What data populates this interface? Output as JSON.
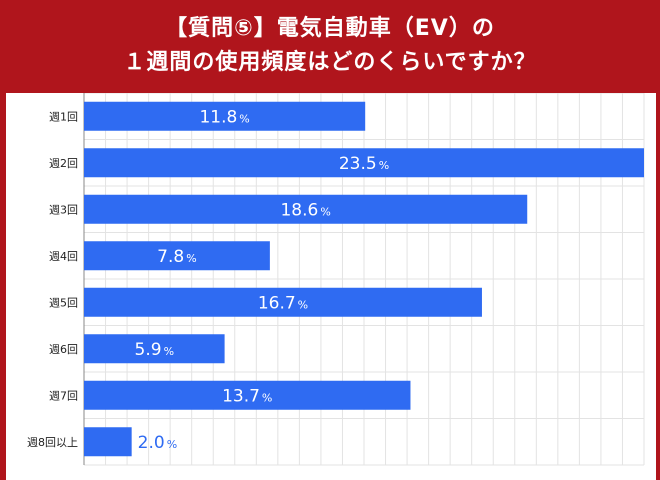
{
  "title": {
    "line1": "【質問⑤】電気自動車（EV）の",
    "line2": "１週間の使用頻度はどのくらいですか？"
  },
  "colors": {
    "frame": "#b0151c",
    "bar": "#2f6bf2",
    "grid": "#e3e3e3",
    "label_on_bar": "#ffffff",
    "label_outside_bar": "#2f6bf2"
  },
  "chart_data": {
    "type": "bar",
    "orientation": "horizontal",
    "title": "【質問⑤】電気自動車（EV）の １週間の使用頻度はどのくらいですか？",
    "categories": [
      "週1回",
      "週2回",
      "週3回",
      "週4回",
      "週5回",
      "週6回",
      "週7回",
      "週8回以上"
    ],
    "values": [
      11.8,
      23.5,
      18.6,
      7.8,
      16.7,
      5.9,
      13.7,
      2.0
    ],
    "value_labels": [
      "11.8",
      "23.5",
      "18.6",
      "7.8",
      "16.7",
      "5.9",
      "13.7",
      "2.0"
    ],
    "unit": "%",
    "xlim": [
      0,
      23.5
    ],
    "grid": true,
    "legend": "none"
  }
}
